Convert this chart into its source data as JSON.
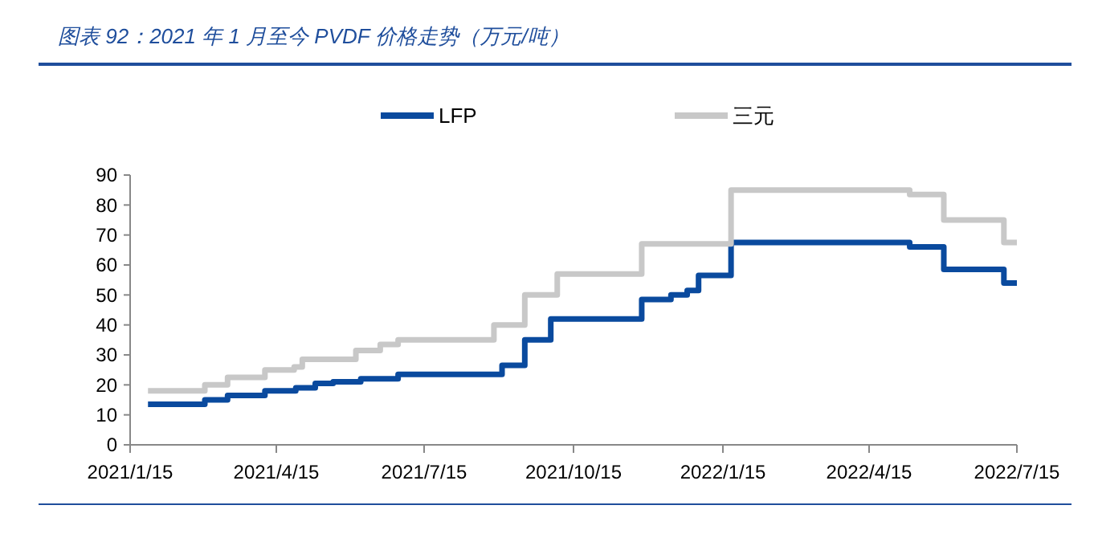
{
  "chart_data": {
    "type": "step",
    "title": "图表 92：2021 年 1 月至今 PVDF 价格走势（万元/吨）",
    "xlim": [
      "2021-01-15",
      "2022-07-15"
    ],
    "xticks": [
      {
        "value": "2021-01-15",
        "label": "2021/1/15"
      },
      {
        "value": "2021-04-15",
        "label": "2021/4/15"
      },
      {
        "value": "2021-07-15",
        "label": "2021/7/15"
      },
      {
        "value": "2021-10-15",
        "label": "2021/10/15"
      },
      {
        "value": "2022-01-15",
        "label": "2022/1/15"
      },
      {
        "value": "2022-04-15",
        "label": "2022/4/15"
      },
      {
        "value": "2022-07-15",
        "label": "2022/7/15"
      }
    ],
    "ylim": [
      0,
      90
    ],
    "yticks": [
      0,
      10,
      20,
      30,
      40,
      50,
      60,
      70,
      80,
      90
    ],
    "grid": false,
    "legend": "top",
    "marker": "none",
    "line_style": "solid",
    "series": [
      {
        "name": "LFP",
        "color": "#0a4a9e",
        "x": [
          "2021-01-26",
          "2021-03-02",
          "2021-03-16",
          "2021-04-08",
          "2021-04-27",
          "2021-05-09",
          "2021-05-20",
          "2021-06-06",
          "2021-06-29",
          "2021-09-01",
          "2021-09-15",
          "2021-10-01",
          "2021-11-26",
          "2021-12-14",
          "2021-12-24",
          "2021-12-31",
          "2022-01-20",
          "2022-05-10",
          "2022-05-31",
          "2022-07-07",
          "2022-07-15"
        ],
        "values": [
          13.5,
          15,
          16.5,
          18,
          19,
          20.5,
          21,
          22,
          23.5,
          26.5,
          35,
          42,
          48.5,
          50,
          51.5,
          56.5,
          67.5,
          66,
          58.5,
          54,
          54
        ]
      },
      {
        "name": "三元",
        "color": "#c8c8c8",
        "x": [
          "2021-01-26",
          "2021-03-02",
          "2021-03-16",
          "2021-04-08",
          "2021-04-26",
          "2021-05-01",
          "2021-06-03",
          "2021-06-18",
          "2021-06-29",
          "2021-08-27",
          "2021-09-15",
          "2021-10-05",
          "2021-11-26",
          "2022-01-20",
          "2022-05-10",
          "2022-05-31",
          "2022-07-07",
          "2022-07-15"
        ],
        "values": [
          18,
          20,
          22.5,
          25,
          26,
          28.5,
          31.5,
          33.5,
          35,
          40,
          50,
          57,
          67,
          85,
          83.5,
          75,
          67.5,
          67.5
        ]
      }
    ]
  }
}
